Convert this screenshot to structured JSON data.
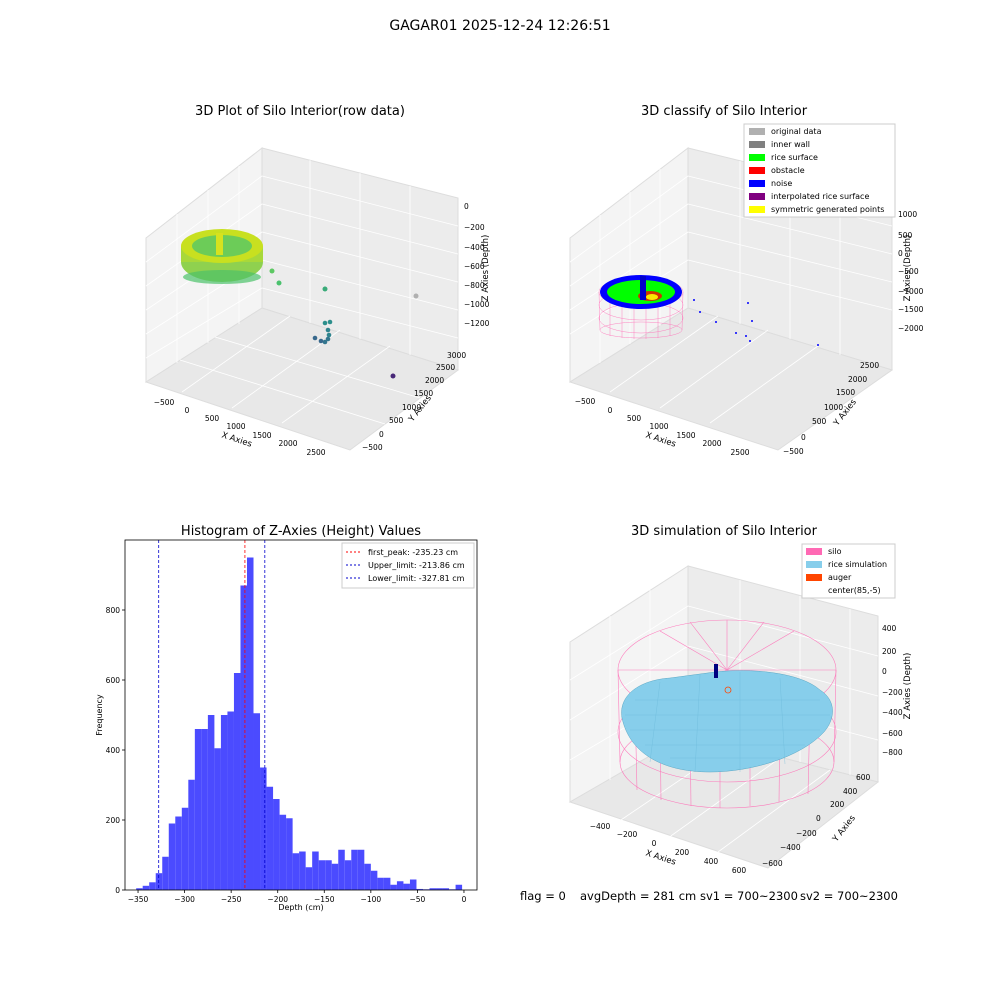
{
  "figure_title": "GAGAR01 2025-12-24 12:26:51",
  "colors": {
    "hist_bar": "#4b4bff",
    "peak_line": "#ff0000",
    "limit_line": "#0000cc",
    "silo": "#ff69b4",
    "rice_sim": "#87ceeb",
    "auger": "#ff4500",
    "rice_surface": "#00ff00",
    "noise": "#0000ff",
    "original": "#b0b0b0",
    "inner_wall": "#808080",
    "obstacle": "#ff0000",
    "interpolated": "#800080",
    "symmetric": "#ffff00"
  },
  "footer": {
    "flag": "flag = 0",
    "avg_depth": "avgDepth = 281 cm",
    "sv1": "sv1 = 700~2300",
    "sv2": "sv2 = 700~2300"
  },
  "chart_data": [
    {
      "type": "scatter",
      "projection": "3d",
      "title": "3D Plot of Silo Interior(row data)",
      "xlabel": "X Axies",
      "ylabel": "Y Axies",
      "zlabel": "Z Axies (Depth)",
      "x_ticks": [
        "−500",
        "0",
        "500",
        "1000",
        "1500",
        "2000",
        "2500"
      ],
      "y_ticks": [
        "−500",
        "0",
        "500",
        "1000",
        "1500",
        "2000",
        "2500",
        "3000"
      ],
      "z_ticks": [
        "0",
        "−200",
        "−400",
        "−600",
        "−800",
        "−1000",
        "−1200"
      ],
      "colormap": "viridis"
    },
    {
      "type": "scatter",
      "projection": "3d",
      "title": "3D classify of Silo Interior",
      "xlabel": "X Axies",
      "ylabel": "Y Axies",
      "zlabel": "Z Axies (Depth)",
      "x_ticks": [
        "−500",
        "0",
        "500",
        "1000",
        "1500",
        "2000",
        "2500"
      ],
      "y_ticks": [
        "−500",
        "0",
        "500",
        "1000",
        "1500",
        "2000",
        "2500"
      ],
      "z_ticks": [
        "1000",
        "500",
        "0",
        "−500",
        "−1000",
        "−1500",
        "−2000"
      ],
      "legend_position": "top-right",
      "legend": [
        {
          "label": "original data",
          "color": "#b0b0b0"
        },
        {
          "label": "inner wall",
          "color": "#808080"
        },
        {
          "label": "rice surface",
          "color": "#00ff00"
        },
        {
          "label": "obstacle",
          "color": "#ff0000"
        },
        {
          "label": "noise",
          "color": "#0000ff"
        },
        {
          "label": "interpolated rice surface",
          "color": "#800080"
        },
        {
          "label": "symmetric generated points",
          "color": "#ffff00"
        }
      ]
    },
    {
      "type": "bar",
      "title": "Histogram of Z-Axies (Height) Values",
      "xlabel": "Depth (cm)",
      "ylabel": "Frequency",
      "xlim": [
        -364,
        14
      ],
      "ylim": [
        0,
        1000
      ],
      "x_ticks": [
        -350,
        -300,
        -250,
        -200,
        -150,
        -100,
        -50,
        0
      ],
      "x_tick_labels": [
        "−350",
        "−300",
        "−250",
        "−200",
        "−150",
        "−100",
        "−50",
        "0"
      ],
      "y_ticks": [
        0,
        200,
        400,
        600,
        800
      ],
      "y_tick_labels": [
        "0",
        "200",
        "400",
        "600",
        "800"
      ],
      "bin_start": -352,
      "bin_width": 7,
      "values": [
        5,
        12,
        22,
        48,
        95,
        190,
        210,
        235,
        315,
        460,
        460,
        500,
        405,
        500,
        510,
        620,
        870,
        950,
        505,
        350,
        295,
        260,
        215,
        205,
        105,
        110,
        65,
        110,
        85,
        85,
        75,
        115,
        85,
        115,
        115,
        75,
        55,
        35,
        35,
        15,
        25,
        18,
        30,
        3,
        2,
        5,
        5,
        5,
        2,
        15
      ],
      "vlines": [
        {
          "label": "first_peak: -235.23 cm",
          "x": -235.23,
          "color": "#ff0000"
        },
        {
          "label": "Upper_limit: -213.86 cm",
          "x": -213.86,
          "color": "#0000cc"
        },
        {
          "label": "Lower_limit: -327.81 cm",
          "x": -327.81,
          "color": "#0000cc"
        }
      ],
      "legend_position": "top-right"
    },
    {
      "type": "surface",
      "projection": "3d",
      "title": "3D simulation of Silo Interior",
      "xlabel": "X Axies",
      "ylabel": "Y Axies",
      "zlabel": "Z Axies (Depth)",
      "x_ticks": [
        "−400",
        "−200",
        "0",
        "200",
        "400",
        "600"
      ],
      "y_ticks": [
        "−600",
        "−400",
        "−200",
        "0",
        "200",
        "400",
        "600"
      ],
      "z_ticks": [
        "400",
        "200",
        "0",
        "−200",
        "−400",
        "−600",
        "−800"
      ],
      "legend_position": "top-right",
      "legend": [
        {
          "label": "silo",
          "color": "#ff69b4"
        },
        {
          "label": "rice simulation",
          "color": "#87ceeb"
        },
        {
          "label": "auger",
          "color": "#ff4500"
        },
        {
          "label": "center(85,-5)",
          "color": "#ffffff"
        }
      ]
    }
  ]
}
